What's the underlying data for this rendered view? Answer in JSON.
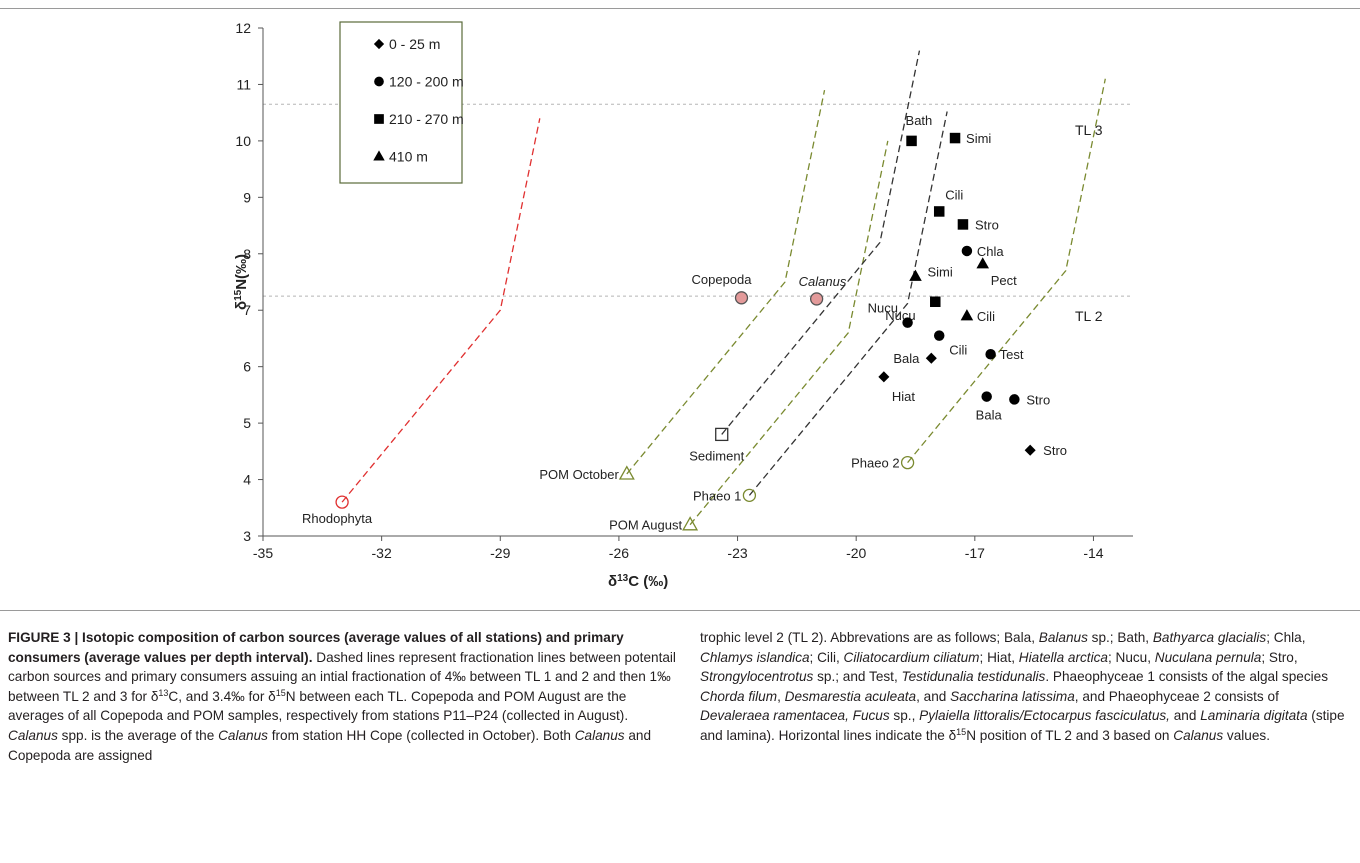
{
  "chart_data": {
    "type": "scatter",
    "xlabel": "δ13C (‰)",
    "ylabel": "δ15N(‰)",
    "xlim": [
      -35,
      -13
    ],
    "ylim": [
      3,
      12
    ],
    "xticks": [
      -35,
      -32,
      -29,
      -26,
      -23,
      -20,
      -17,
      -14
    ],
    "yticks": [
      3,
      4,
      5,
      6,
      7,
      8,
      9,
      10,
      11,
      12
    ],
    "xtick_labels": [
      "-35",
      "-32",
      "-29",
      "-26",
      "-23",
      "-20",
      "-17",
      "-14"
    ],
    "ytick_labels": [
      "3",
      "4",
      "5",
      "6",
      "7",
      "8",
      "9",
      "10",
      "11",
      "12"
    ],
    "grid": false,
    "legend": {
      "placement": "top-left",
      "entries": [
        {
          "marker": "diamond",
          "label": "0 - 25 m"
        },
        {
          "marker": "circle",
          "label": "120 - 200 m"
        },
        {
          "marker": "square",
          "label": "210 - 270 m"
        },
        {
          "marker": "triangle",
          "label": "410 m"
        }
      ]
    },
    "horizontal_lines": [
      {
        "y": 10.65,
        "label": "TL 3"
      },
      {
        "y": 7.25,
        "label": "TL 2"
      }
    ],
    "sources": [
      {
        "label": "Rhodophyta",
        "x": -33.0,
        "y": 3.6,
        "marker": "circle",
        "color": "#e03030",
        "fill": "none"
      },
      {
        "label": "POM October",
        "x": -25.8,
        "y": 4.1,
        "marker": "triangle",
        "color": "#7a8a30",
        "fill": "none"
      },
      {
        "label": "POM August",
        "x": -24.2,
        "y": 3.2,
        "marker": "triangle",
        "color": "#7a8a30",
        "fill": "none"
      },
      {
        "label": "Sediment",
        "x": -23.4,
        "y": 4.8,
        "marker": "square",
        "color": "#333333",
        "fill": "none"
      },
      {
        "label": "Phaeo 1",
        "x": -22.7,
        "y": 3.72,
        "marker": "circle",
        "color": "#7a8a30",
        "fill": "none"
      },
      {
        "label": "Phaeo 2",
        "x": -18.7,
        "y": 4.3,
        "marker": "circle",
        "color": "#7a8a30",
        "fill": "none"
      },
      {
        "label": "Copepoda",
        "x": -22.9,
        "y": 7.22,
        "marker": "circle",
        "color": "#555555",
        "fill": "#e39a9a"
      },
      {
        "label": "Calanus",
        "x": -21.0,
        "y": 7.2,
        "marker": "circle",
        "color": "#555555",
        "fill": "#e39a9a"
      }
    ],
    "consumers": [
      {
        "label": "Bath",
        "x": -18.6,
        "y": 10.0,
        "depth": "210 - 270 m",
        "marker": "square"
      },
      {
        "label": "Simi",
        "x": -17.5,
        "y": 10.05,
        "depth": "210 - 270 m",
        "marker": "square"
      },
      {
        "label": "Cili",
        "x": -17.9,
        "y": 8.75,
        "depth": "210 - 270 m",
        "marker": "square"
      },
      {
        "label": "Stro",
        "x": -17.3,
        "y": 8.52,
        "depth": "210 - 270 m",
        "marker": "square"
      },
      {
        "label": "Nucu",
        "x": -18.0,
        "y": 7.15,
        "depth": "210 - 270 m",
        "marker": "square"
      },
      {
        "label": "Chla",
        "x": -17.2,
        "y": 8.05,
        "depth": "120 - 200 m",
        "marker": "circle"
      },
      {
        "label": "Nucu",
        "x": -18.7,
        "y": 6.78,
        "depth": "120 - 200 m",
        "marker": "circle"
      },
      {
        "label": "Cili",
        "x": -17.9,
        "y": 6.55,
        "depth": "120 - 200 m",
        "marker": "circle"
      },
      {
        "label": "Test",
        "x": -16.6,
        "y": 6.22,
        "depth": "120 - 200 m",
        "marker": "circle"
      },
      {
        "label": "Bala",
        "x": -16.7,
        "y": 5.47,
        "depth": "120 - 200 m",
        "marker": "circle"
      },
      {
        "label": "Stro",
        "x": -16.0,
        "y": 5.42,
        "depth": "120 - 200 m",
        "marker": "circle"
      },
      {
        "label": "Simi",
        "x": -18.5,
        "y": 7.6,
        "depth": "410 m",
        "marker": "triangle"
      },
      {
        "label": "Pect",
        "x": -16.8,
        "y": 7.82,
        "depth": "410 m",
        "marker": "triangle"
      },
      {
        "label": "Cili",
        "x": -17.2,
        "y": 6.9,
        "depth": "410 m",
        "marker": "triangle"
      },
      {
        "label": "Bala",
        "x": -18.1,
        "y": 6.15,
        "depth": "0 - 25 m",
        "marker": "diamond"
      },
      {
        "label": "Hiat",
        "x": -19.3,
        "y": 5.82,
        "depth": "0 - 25 m",
        "marker": "diamond"
      },
      {
        "label": "Stro",
        "x": -15.6,
        "y": 4.52,
        "depth": "0 - 25 m",
        "marker": "diamond"
      }
    ],
    "fractionation_lines": [
      {
        "color": "#e03030",
        "points": [
          [
            -33.0,
            3.6
          ],
          [
            -29.0,
            7.0
          ],
          [
            -28.0,
            10.4
          ]
        ]
      },
      {
        "color": "#7a8a30",
        "points": [
          [
            -25.8,
            4.1
          ],
          [
            -21.8,
            7.5
          ],
          [
            -20.8,
            10.9
          ]
        ]
      },
      {
        "color": "#7a8a30",
        "points": [
          [
            -24.2,
            3.2
          ],
          [
            -20.2,
            6.6
          ],
          [
            -19.2,
            10.0
          ]
        ]
      },
      {
        "color": "#333333",
        "points": [
          [
            -23.4,
            4.8
          ],
          [
            -19.4,
            8.2
          ],
          [
            -18.4,
            11.6
          ]
        ]
      },
      {
        "color": "#333333",
        "points": [
          [
            -22.7,
            3.72
          ],
          [
            -18.7,
            7.12
          ],
          [
            -17.7,
            10.52
          ]
        ]
      },
      {
        "color": "#7a8a30",
        "points": [
          [
            -18.7,
            4.3
          ],
          [
            -14.7,
            7.7
          ],
          [
            -13.7,
            11.1
          ]
        ]
      }
    ]
  },
  "caption": {
    "left": [
      {
        "t": "FIGURE 3 | Isotopic composition of carbon sources (average values of all stations) and primary consumers (average values per depth interval).",
        "b": 1
      },
      {
        "t": " Dashed lines represent fractionation lines between potentail carbon sources and primary consumers assuing an intial fractionation of 4‰ between TL 1 and 2 and then 1‰ between TL 2 and 3 for δ"
      },
      {
        "t": "13",
        "sup": 1
      },
      {
        "t": "C, and 3.4‰ for δ"
      },
      {
        "t": "15",
        "sup": 1
      },
      {
        "t": "N between each TL. Copepoda and POM August are the averages of all Copepoda and POM samples, respectively from stations P11–P24 (collected in August). "
      },
      {
        "t": "Calanus",
        "i": 1
      },
      {
        "t": " spp. is the average of the "
      },
      {
        "t": "Calanus",
        "i": 1
      },
      {
        "t": " from station HH Cope (collected in October). Both "
      },
      {
        "t": "Calanus",
        "i": 1
      },
      {
        "t": " and Copepoda are assigned"
      }
    ],
    "right": [
      {
        "t": "trophic level 2 (TL 2). Abbrevations are as follows; Bala, "
      },
      {
        "t": "Balanus",
        "i": 1
      },
      {
        "t": " sp.; Bath, "
      },
      {
        "t": "Bathyarca glacialis",
        "i": 1
      },
      {
        "t": "; Chla, "
      },
      {
        "t": "Chlamys islandica",
        "i": 1
      },
      {
        "t": "; Cili, "
      },
      {
        "t": "Ciliatocardium ciliatum",
        "i": 1
      },
      {
        "t": "; Hiat, "
      },
      {
        "t": "Hiatella arctica",
        "i": 1
      },
      {
        "t": "; Nucu, "
      },
      {
        "t": "Nuculana pernula",
        "i": 1
      },
      {
        "t": "; Stro, "
      },
      {
        "t": "Strongylocentrotus",
        "i": 1
      },
      {
        "t": " sp.; and Test, "
      },
      {
        "t": "Testidunalia testidunalis",
        "i": 1
      },
      {
        "t": ". Phaeophyceae 1 consists of the algal species "
      },
      {
        "t": "Chorda filum",
        "i": 1
      },
      {
        "t": ", "
      },
      {
        "t": "Desmarestia aculeata",
        "i": 1
      },
      {
        "t": ", and "
      },
      {
        "t": "Saccharina latissima",
        "i": 1
      },
      {
        "t": ", and Phaeophyceae 2 consists of "
      },
      {
        "t": "Devaleraea ramentacea, Fucus",
        "i": 1
      },
      {
        "t": " sp., "
      },
      {
        "t": "Pylaiella littoralis/Ectocarpus fasciculatus,",
        "i": 1
      },
      {
        "t": " and "
      },
      {
        "t": "Laminaria digitata",
        "i": 1
      },
      {
        "t": " (stipe and lamina). Horizontal lines indicate the δ"
      },
      {
        "t": "15",
        "sup": 1
      },
      {
        "t": "N position of TL 2 and 3 based on "
      },
      {
        "t": "Calanus",
        "i": 1
      },
      {
        "t": " values."
      }
    ]
  }
}
